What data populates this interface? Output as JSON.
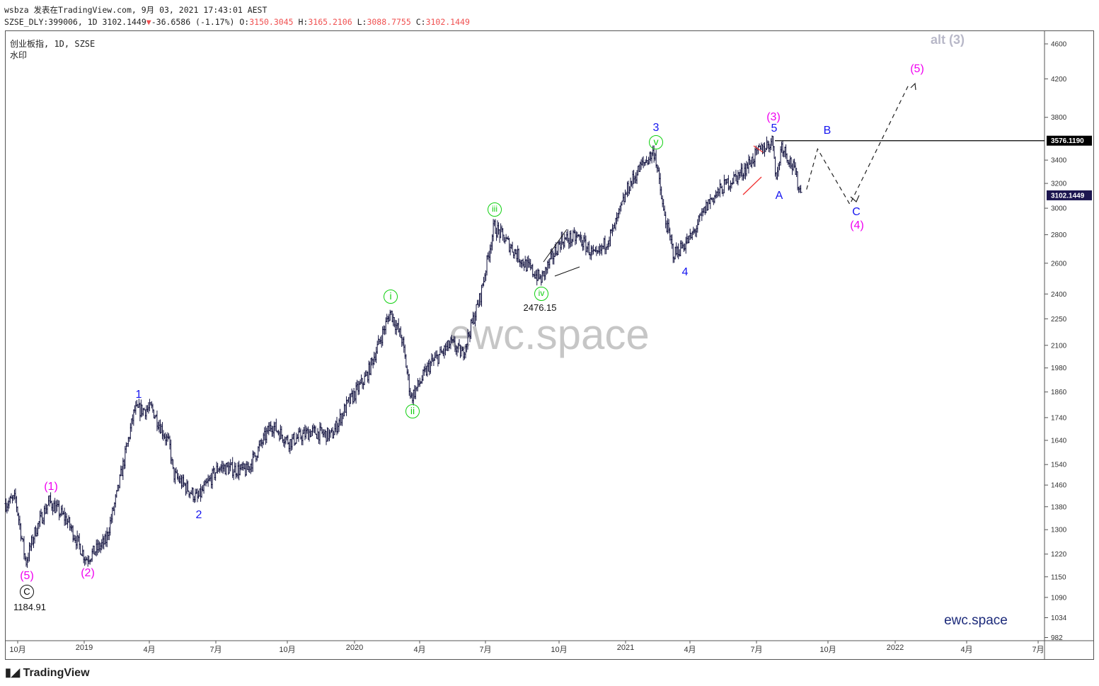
{
  "header": {
    "line1": "wsbza 发表在TradingView.com, 9月 03, 2021 17:43:01 AEST",
    "symbol": "SZSE_DLY:399006, 1D 3102.1449",
    "change": "-36.6586 (-1.17%)",
    "o_label": "O:",
    "o": "3150.3045",
    "h_label": "H:",
    "h": "3165.2106",
    "l_label": "L:",
    "l": "3088.7755",
    "c_label": "C:",
    "c": "3102.1449"
  },
  "legend": {
    "title": "创业板指, 1D, SZSE",
    "sub": "水印"
  },
  "watermark": "ewc.space",
  "brand": "ewc.space",
  "footer": "TradingView",
  "colors": {
    "bars": "#131340",
    "blue": "#1515f0",
    "magenta": "#f000f0",
    "green": "#10d010",
    "red": "#f03030"
  },
  "labels": {
    "p5": "(5)",
    "c_circle": "C",
    "low_price": "1184.91",
    "p1": "(1)",
    "p2": "(2)",
    "w1": "1",
    "w2": "2",
    "i": "i",
    "ii": "ii",
    "iii": "iii",
    "iv": "iv",
    "iv_price": "2476.15",
    "v": "v",
    "w3": "3",
    "w4": "4",
    "p3": "(3)",
    "w5": "5",
    "A": "A",
    "B": "B",
    "C": "C",
    "p4": "(4)",
    "p5b": "(5)",
    "alt": "alt (3)"
  },
  "chart_data": {
    "type": "ohlc",
    "title": "创业板指, 1D, SZSE",
    "scale": "log",
    "ylim": [
      982,
      4600
    ],
    "yticks": [
      4600,
      4200,
      3800,
      3400,
      3200,
      3000,
      2800,
      2600,
      2400,
      2250,
      2100,
      1980,
      1860,
      1740,
      1640,
      1540,
      1460,
      1380,
      1300,
      1220,
      1150,
      1090,
      1034,
      982
    ],
    "xticks": [
      "10月",
      "2019",
      "4月",
      "7月",
      "10月",
      "2020",
      "4月",
      "7月",
      "10月",
      "2021",
      "4月",
      "7月",
      "10月",
      "2022",
      "4月",
      "7月"
    ],
    "price_labels": {
      "resistance": "3576.1190",
      "last": "3102.1449"
    },
    "closes_approx": [
      [
        "2018-09-15",
        1391
      ],
      [
        "2018-09-28",
        1409
      ],
      [
        "2018-10-12",
        1193
      ],
      [
        "2018-10-25",
        1296
      ],
      [
        "2018-11-13",
        1400
      ],
      [
        "2018-12-07",
        1333
      ],
      [
        "2019-01-02",
        1204
      ],
      [
        "2019-01-29",
        1261
      ],
      [
        "2019-02-13",
        1422
      ],
      [
        "2019-02-25",
        1587
      ],
      [
        "2019-03-09",
        1772
      ],
      [
        "2019-04-02",
        1780
      ],
      [
        "2019-04-26",
        1618
      ],
      [
        "2019-05-01",
        1502
      ],
      [
        "2019-06-03",
        1409
      ],
      [
        "2019-07-02",
        1530
      ],
      [
        "2019-08-09",
        1515
      ],
      [
        "2019-09-12",
        1708
      ],
      [
        "2019-10-06",
        1633
      ],
      [
        "2019-11-04",
        1678
      ],
      [
        "2019-12-03",
        1660
      ],
      [
        "2019-12-22",
        1788
      ],
      [
        "2020-01-20",
        1942
      ],
      [
        "2020-02-21",
        2292
      ],
      [
        "2020-03-08",
        2129
      ],
      [
        "2020-03-20",
        1831
      ],
      [
        "2020-04-15",
        1998
      ],
      [
        "2020-05-14",
        2110
      ],
      [
        "2020-05-29",
        2051
      ],
      [
        "2020-06-22",
        2377
      ],
      [
        "2020-07-11",
        2862
      ],
      [
        "2020-08-04",
        2709
      ],
      [
        "2020-08-19",
        2611
      ],
      [
        "2020-09-13",
        2491
      ],
      [
        "2020-10-10",
        2757
      ],
      [
        "2020-11-03",
        2782
      ],
      [
        "2020-11-27",
        2636
      ],
      [
        "2020-12-21",
        2836
      ],
      [
        "2021-01-10",
        3167
      ],
      [
        "2021-01-27",
        3345
      ],
      [
        "2021-02-15",
        3480
      ],
      [
        "2021-02-27",
        2970
      ],
      [
        "2021-03-13",
        2659
      ],
      [
        "2021-04-06",
        2782
      ],
      [
        "2021-04-30",
        3052
      ],
      [
        "2021-05-24",
        3197
      ],
      [
        "2021-06-13",
        3287
      ],
      [
        "2021-07-07",
        3480
      ],
      [
        "2021-07-26",
        3576
      ],
      [
        "2021-07-31",
        3229
      ],
      [
        "2021-08-07",
        3546
      ],
      [
        "2021-08-24",
        3315
      ],
      [
        "2021-09-03",
        3102
      ]
    ],
    "projection": [
      [
        "2021-09-10",
        3150
      ],
      [
        "2021-09-25",
        3500
      ],
      [
        "2021-11-08",
        3030
      ],
      [
        "2022-01-28",
        4150
      ]
    ]
  }
}
